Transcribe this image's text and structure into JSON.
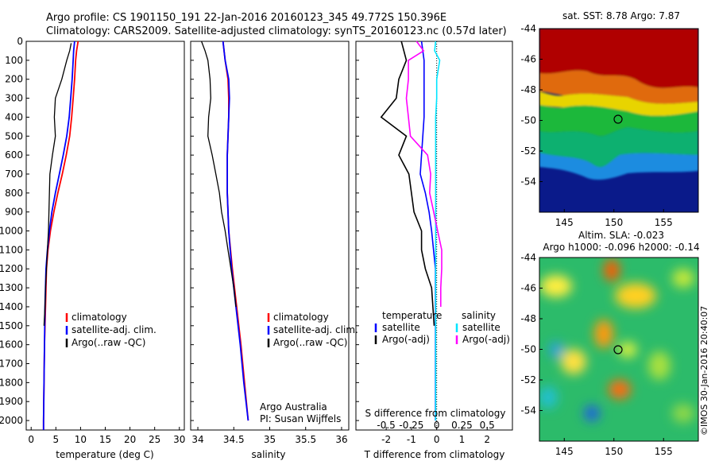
{
  "header": {
    "line1": "Argo profile: CS 1901150_191 22-Jan-2016 20160123_345 49.772S 150.396E",
    "line2": "Climatology: CARS2009. Satellite-adjusted climatology: synTS_20160123.nc (0.57d later)"
  },
  "footer": {
    "credit_line1": "Argo Australia",
    "credit_line2": "PI: Susan Wijffels",
    "stamp": "©IMOS 30-Jan-2016 20:40:07"
  },
  "colors": {
    "climatology": "#ff0000",
    "satellite": "#0000ff",
    "argo": "#000000",
    "salinity_satellite": "#00e5ff",
    "salinity_argo": "#ff00ff"
  },
  "chart_data": [
    {
      "type": "line",
      "xlabel": "temperature (deg C)",
      "ylabel": "",
      "xlim": [
        -1,
        31
      ],
      "ylim": [
        2050,
        0
      ],
      "xticks": [
        "0",
        "5",
        "10",
        "15",
        "20",
        "25",
        "30"
      ],
      "yticks": [
        "0",
        "100",
        "200",
        "300",
        "400",
        "500",
        "600",
        "700",
        "800",
        "900",
        "1000",
        "1100",
        "1200",
        "1300",
        "1400",
        "1500",
        "1600",
        "1700",
        "1800",
        "1900",
        "2000"
      ],
      "legend": [
        "climatology",
        "satellite-adj. clim.",
        "Argo(..raw -QC)"
      ],
      "legend_position": "lower-right",
      "series": [
        {
          "name": "climatology",
          "depth": [
            0,
            50,
            100,
            200,
            300,
            400,
            500,
            600,
            700,
            800,
            900,
            1000,
            1100,
            1200,
            1400,
            1600,
            1800,
            2000,
            2050
          ],
          "values": [
            9.5,
            9.2,
            9.0,
            8.8,
            8.5,
            8.2,
            7.8,
            7.1,
            6.3,
            5.4,
            4.6,
            3.9,
            3.4,
            3.1,
            2.9,
            2.7,
            2.6,
            2.5,
            2.5
          ]
        },
        {
          "name": "satellite-adj. clim.",
          "depth": [
            0,
            50,
            100,
            200,
            300,
            400,
            500,
            600,
            700,
            800,
            900,
            1000,
            1100,
            1200,
            1400,
            1600,
            1800,
            2000,
            2050
          ],
          "values": [
            8.8,
            8.6,
            8.5,
            8.3,
            8.0,
            7.7,
            7.2,
            6.5,
            5.7,
            4.9,
            4.2,
            3.7,
            3.3,
            3.0,
            2.8,
            2.7,
            2.6,
            2.5,
            2.5
          ]
        },
        {
          "name": "Argo(..raw -QC)",
          "depth": [
            10,
            50,
            100,
            200,
            300,
            400,
            500,
            600,
            700,
            800,
            900,
            1000,
            1100,
            1200,
            1300,
            1400,
            1500
          ],
          "values": [
            8.1,
            7.8,
            7.2,
            6.2,
            4.9,
            4.7,
            4.9,
            4.3,
            3.8,
            3.7,
            3.6,
            3.5,
            3.3,
            3.1,
            2.9,
            2.8,
            2.6
          ]
        }
      ]
    },
    {
      "type": "line",
      "xlabel": "salinity",
      "ylabel": "",
      "xlim": [
        33.9,
        36.1
      ],
      "ylim": [
        2050,
        0
      ],
      "xticks": [
        "34",
        "34.5",
        "35",
        "35.5",
        "36"
      ],
      "legend": [
        "climatology",
        "satellite-adj. clim.",
        "Argo(..raw -QC)"
      ],
      "legend_position": "lower-right",
      "series": [
        {
          "name": "climatology",
          "depth": [
            0,
            100,
            200,
            300,
            400,
            500,
            600,
            800,
            1000,
            1200,
            1400,
            1600,
            1800,
            2000
          ],
          "values": [
            34.35,
            34.38,
            34.42,
            34.43,
            34.43,
            34.42,
            34.41,
            34.41,
            34.43,
            34.48,
            34.54,
            34.6,
            34.65,
            34.7
          ]
        },
        {
          "name": "satellite-adj. clim.",
          "depth": [
            0,
            100,
            200,
            300,
            400,
            500,
            600,
            800,
            1000,
            1200,
            1400,
            1600,
            1800,
            2000
          ],
          "values": [
            34.35,
            34.38,
            34.43,
            34.44,
            34.43,
            34.42,
            34.41,
            34.41,
            34.43,
            34.47,
            34.53,
            34.59,
            34.64,
            34.7
          ]
        },
        {
          "name": "Argo(..raw -QC)",
          "depth": [
            0,
            50,
            100,
            200,
            300,
            400,
            500,
            600,
            700,
            800,
            900,
            1000,
            1100,
            1200,
            1300,
            1400
          ],
          "values": [
            34.05,
            34.1,
            34.14,
            34.17,
            34.18,
            34.15,
            34.14,
            34.2,
            34.25,
            34.3,
            34.33,
            34.38,
            34.42,
            34.46,
            34.5,
            34.53
          ]
        }
      ]
    },
    {
      "type": "line",
      "xlabel": "T difference from climatology",
      "top_xlabel": "S difference from climatology",
      "xlim": [
        -3.2,
        3.0
      ],
      "ylim": [
        2050,
        0
      ],
      "xticks": [
        "-2",
        "-1",
        "0",
        "1",
        "2"
      ],
      "top_xticks": [
        "-0.5",
        "-0.25",
        "0",
        "0.25",
        "0.5"
      ],
      "legend": [
        "temperature",
        "satellite",
        "Argo(-adj)",
        "salinity",
        "satellite",
        "Argo(-adj)"
      ],
      "legend_position": "lower",
      "series": [
        {
          "name": "satellite",
          "group": "temperature",
          "depth": [
            0,
            100,
            200,
            300,
            400,
            500,
            600,
            700,
            800,
            900,
            1000,
            1200,
            1400,
            1600,
            1800,
            2000
          ],
          "values": [
            -0.6,
            -0.5,
            -0.5,
            -0.5,
            -0.5,
            -0.55,
            -0.6,
            -0.65,
            -0.45,
            -0.3,
            -0.2,
            -0.05,
            -0.05,
            -0.05,
            -0.05,
            -0.05
          ]
        },
        {
          "name": "Argo(-adj)",
          "group": "temperature",
          "depth": [
            0,
            100,
            200,
            300,
            400,
            500,
            600,
            700,
            800,
            900,
            1000,
            1100,
            1200,
            1300,
            1400,
            1500
          ],
          "values": [
            -1.4,
            -1.2,
            -1.5,
            -1.6,
            -2.2,
            -1.2,
            -1.5,
            -1.1,
            -1.0,
            -0.9,
            -0.6,
            -0.6,
            -0.45,
            -0.2,
            -0.15,
            -0.1
          ]
        },
        {
          "name": "satellite",
          "group": "salinity",
          "depth": [
            0,
            50,
            100,
            200,
            300,
            400,
            500,
            600,
            800,
            1000,
            1400,
            1800,
            2000
          ],
          "values": [
            -0.01,
            -0.02,
            0.03,
            0.0,
            0.0,
            -0.01,
            -0.01,
            -0.01,
            -0.01,
            -0.01,
            -0.01,
            -0.01,
            -0.01
          ]
        },
        {
          "name": "Argo(-adj)",
          "group": "salinity",
          "depth": [
            0,
            50,
            100,
            200,
            300,
            400,
            500,
            600,
            700,
            800,
            900,
            1000,
            1100,
            1200,
            1300,
            1400
          ],
          "values": [
            -0.2,
            -0.13,
            -0.28,
            -0.28,
            -0.3,
            -0.28,
            -0.26,
            -0.09,
            -0.06,
            -0.07,
            -0.03,
            0.01,
            0.05,
            0.05,
            0.04,
            0.04
          ]
        }
      ]
    },
    {
      "type": "heatmap",
      "title": "sat. SST: 8.78 Argo: 7.87",
      "xticks": [
        "145",
        "150",
        "155"
      ],
      "yticks": [
        "-44",
        "-46",
        "-48",
        "-50",
        "-52",
        "-54"
      ],
      "xlim": [
        142.5,
        158.5
      ],
      "ylim": [
        -56,
        -44
      ],
      "marker": {
        "lon": 150.4,
        "lat": -49.77
      }
    },
    {
      "type": "heatmap",
      "title": "Altim. SLA: -0.023",
      "subtitle": "Argo h1000: -0.096 h2000: -0.14",
      "xticks": [
        "145",
        "150",
        "155"
      ],
      "yticks": [
        "-44",
        "-46",
        "-48",
        "-50",
        "-52",
        "-54"
      ],
      "xlim": [
        142.5,
        158.5
      ],
      "ylim": [
        -56,
        -44
      ],
      "marker": {
        "lon": 150.4,
        "lat": -49.77
      }
    }
  ]
}
